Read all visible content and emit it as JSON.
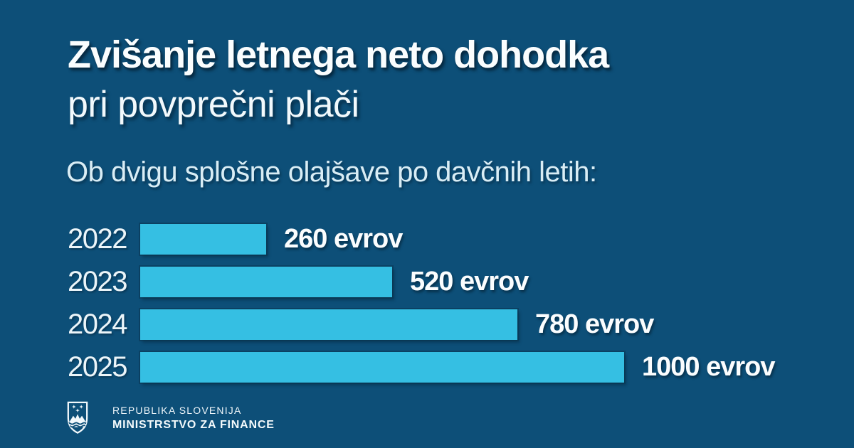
{
  "page": {
    "background_color": "#0d4f78",
    "accent_color": "#35bfe3"
  },
  "header": {
    "title_line1": "Zvišanje letnega neto dohodka",
    "title_line2": "pri povprečni plači",
    "subtitle": "Ob dvigu splošne olajšave po davčnih letih:"
  },
  "chart_data": {
    "type": "bar",
    "orientation": "horizontal",
    "title": "Zvišanje letnega neto dohodka pri povprečni plači",
    "subtitle": "Ob dvigu splošne olajšave po davčnih letih:",
    "categories": [
      "2022",
      "2023",
      "2024",
      "2025"
    ],
    "values": [
      260,
      520,
      780,
      1000
    ],
    "value_labels": [
      "260 evrov",
      "520 evrov",
      "780 evrov",
      "1000 evrov"
    ],
    "unit": "evrov",
    "xlim": [
      0,
      1000
    ],
    "bar_color": "#35bfe3",
    "grid": false,
    "legend": false
  },
  "footer": {
    "org_line1": "REPUBLIKA SLOVENIJA",
    "org_line2": "MINISTRSTVO ZA FINANCE",
    "logo": "slovenia-coat-of-arms"
  }
}
